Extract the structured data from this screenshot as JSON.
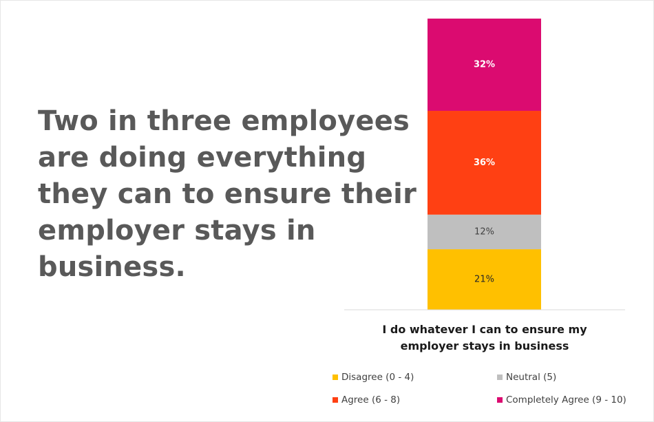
{
  "headline": "Two in three employees are doing everything they can to ensure their employer stays in business.",
  "chart_data": {
    "type": "bar",
    "stacked": true,
    "orientation": "vertical",
    "categories": [
      "I do whatever I can to ensure my employer stays in business"
    ],
    "category_lines": [
      "I do whatever I can to ensure my",
      "employer stays in business"
    ],
    "series": [
      {
        "name": "Disagree (0 - 4)",
        "values": [
          21
        ],
        "label": "21%",
        "color": "#FFC000",
        "label_color": "#262626",
        "label_bold": false
      },
      {
        "name": "Neutral (5)",
        "values": [
          12
        ],
        "label": "12%",
        "color": "#BFBFBF",
        "label_color": "#404040",
        "label_bold": false
      },
      {
        "name": "Agree (6 - 8)",
        "values": [
          36
        ],
        "label": "36%",
        "color": "#FF4013",
        "label_color": "#FFFFFF",
        "label_bold": true
      },
      {
        "name": "Completely Agree (9 - 10)",
        "values": [
          32
        ],
        "label": "32%",
        "color": "#DB0B70",
        "label_color": "#FFFFFF",
        "label_bold": true
      }
    ],
    "ylim": [
      0,
      101
    ],
    "grid": false,
    "legend_position": "bottom",
    "xlabel": "",
    "ylabel": ""
  }
}
